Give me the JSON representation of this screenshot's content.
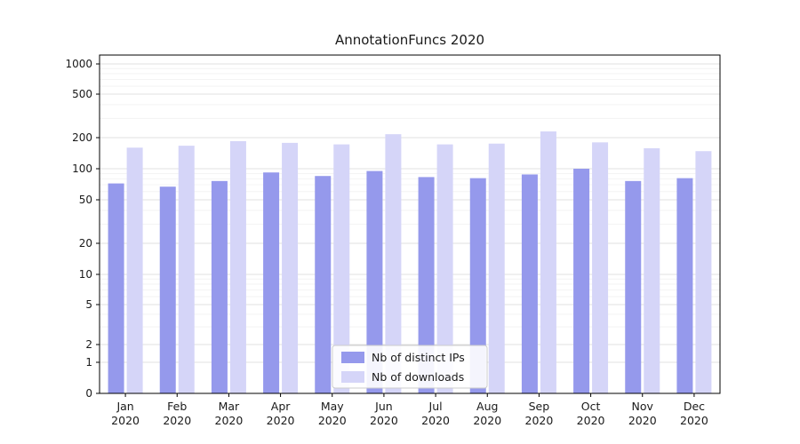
{
  "chart_data": {
    "type": "bar",
    "title": "AnnotationFuncs 2020",
    "scale": "symlog",
    "grid": true,
    "legend_position": "lower center",
    "year": "2020",
    "categories": [
      "Jan",
      "Feb",
      "Mar",
      "Apr",
      "May",
      "Jun",
      "Jul",
      "Aug",
      "Sep",
      "Oct",
      "Nov",
      "Dec"
    ],
    "yticks": [
      0,
      1,
      2,
      5,
      10,
      20,
      50,
      100,
      200,
      500,
      1000
    ],
    "ylim": [
      0,
      1300
    ],
    "series": [
      {
        "name": "Nb of distinct IPs",
        "color": "#9599ec",
        "values": [
          72,
          67,
          76,
          92,
          85,
          95,
          83,
          81,
          88,
          100,
          76,
          81
        ]
      },
      {
        "name": "Nb of downloads",
        "color": "#d5d5f8",
        "values": [
          160,
          167,
          185,
          178,
          172,
          215,
          172,
          175,
          228,
          180,
          158,
          148
        ]
      }
    ]
  }
}
